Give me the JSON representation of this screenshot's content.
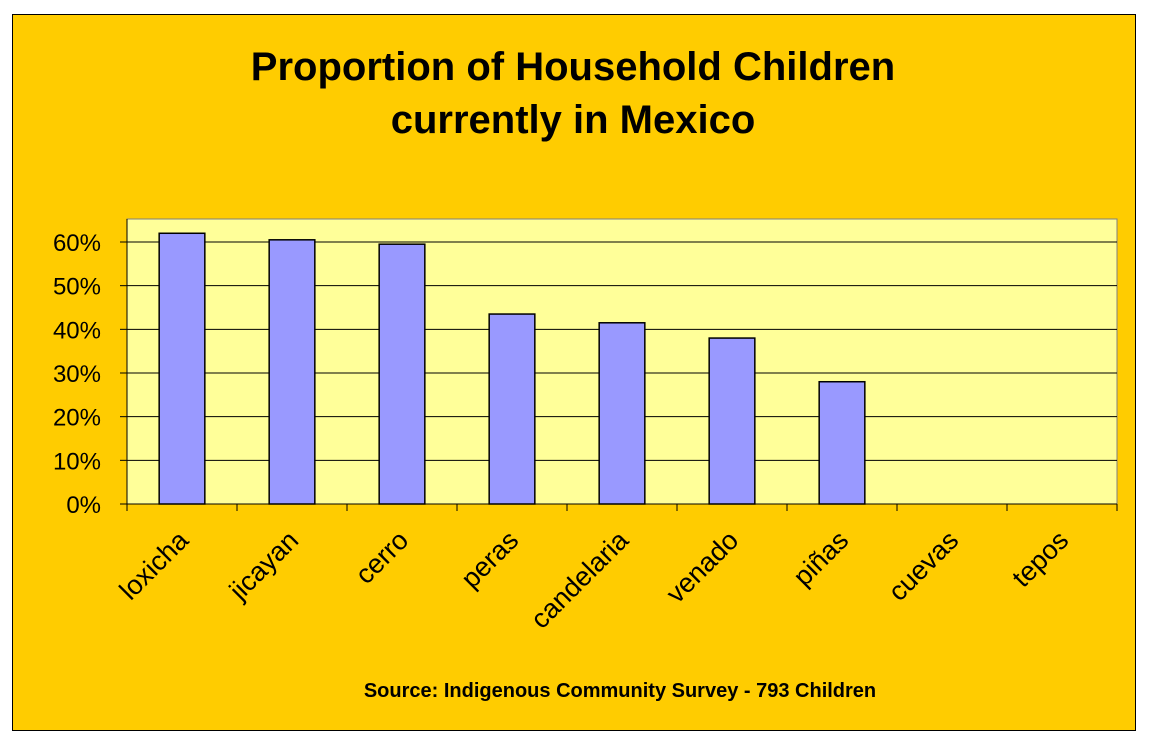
{
  "chart_data": {
    "type": "bar",
    "title": [
      "Proportion of Household Children",
      "currently in Mexico"
    ],
    "categories": [
      "loxicha",
      "jicayan",
      "cerro",
      "peras",
      "candelaria",
      "venado",
      "piñas",
      "cuevas",
      "tepos"
    ],
    "values": [
      0.62,
      0.605,
      0.595,
      0.435,
      0.415,
      0.38,
      0.28,
      0,
      0
    ],
    "ylim": [
      0,
      0.6
    ],
    "yticks": [
      0,
      0.1,
      0.2,
      0.3,
      0.4,
      0.5,
      0.6
    ],
    "ytick_labels": [
      "0%",
      "10%",
      "20%",
      "30%",
      "40%",
      "50%",
      "60%"
    ],
    "grid": true,
    "source": "Source: Indigenous Community Survey - 793 Children"
  },
  "colors": {
    "background": "#FFCC00",
    "plot_area": "#FFFF99",
    "bar_fill": "#9999FF",
    "bar_stroke": "#000000",
    "grid": "#000000"
  }
}
